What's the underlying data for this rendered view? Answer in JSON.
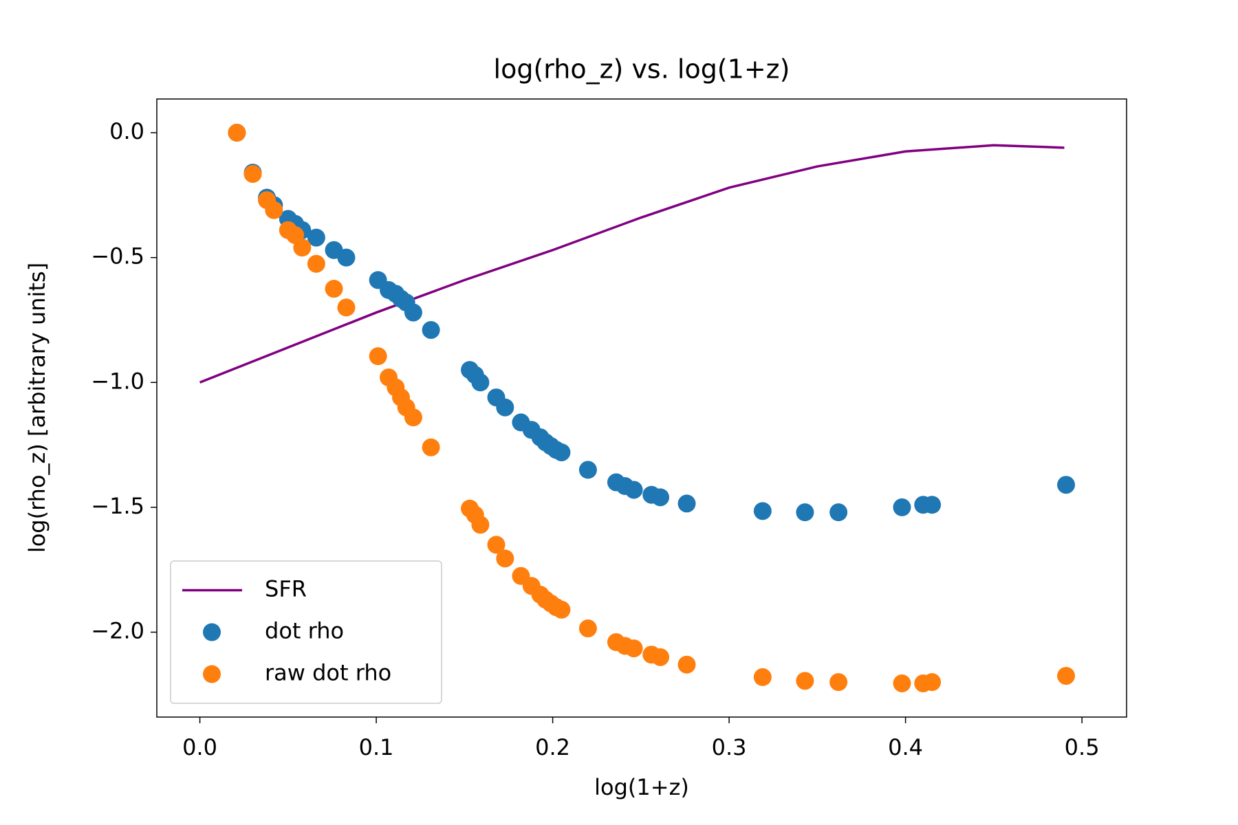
{
  "chart_data": {
    "type": "scatter",
    "title": "log(rho_z) vs. log(1+z)",
    "x_label": "log(1+z)",
    "y_label": "log(rho_z) [arbitrary units]",
    "xlim": [
      -0.0244,
      0.5253
    ],
    "ylim": [
      -2.34,
      0.135
    ],
    "xticks": [
      {
        "value": 0,
        "label": "0.0"
      },
      0.1,
      0.2,
      0.3,
      0.4,
      0.5
    ],
    "yticks": [
      {
        "value": 0,
        "label": "0.0"
      },
      {
        "value": -0.5,
        "label": "−0.5"
      },
      {
        "value": -1.0,
        "label": "−1.0"
      },
      {
        "value": -1.5,
        "label": "−1.5"
      },
      {
        "value": -2.0,
        "label": "−2.0"
      }
    ],
    "grid": false,
    "legend": "lower left",
    "series": [
      {
        "name": "SFR",
        "type": "line",
        "color": "#800080",
        "x": [
          0,
          0.05,
          0.1,
          0.15,
          0.2,
          0.25,
          0.3,
          0.35,
          0.4,
          0.45,
          0.49
        ],
        "values": [
          -1.0,
          -0.86,
          -0.72,
          -0.59,
          -0.47,
          -0.34,
          -0.22,
          -0.135,
          -0.075,
          -0.05,
          -0.06
        ]
      },
      {
        "name": "dot rho",
        "type": "scatter",
        "color": "#1f77b4",
        "x": [
          0.021,
          0.03,
          0.038,
          0.042,
          0.05,
          0.054,
          0.058,
          0.066,
          0.076,
          0.083,
          0.101,
          0.107,
          0.111,
          0.114,
          0.117,
          0.121,
          0.131,
          0.153,
          0.156,
          0.159,
          0.168,
          0.173,
          0.182,
          0.188,
          0.193,
          0.196,
          0.199,
          0.202,
          0.205,
          0.22,
          0.236,
          0.241,
          0.246,
          0.256,
          0.261,
          0.276,
          0.319,
          0.343,
          0.362,
          0.398,
          0.41,
          0.415,
          0.491
        ],
        "values": [
          0.0,
          -0.16,
          -0.26,
          -0.29,
          -0.345,
          -0.365,
          -0.39,
          -0.42,
          -0.47,
          -0.5,
          -0.59,
          -0.63,
          -0.645,
          -0.665,
          -0.68,
          -0.72,
          -0.79,
          -0.95,
          -0.97,
          -1.0,
          -1.06,
          -1.1,
          -1.16,
          -1.19,
          -1.22,
          -1.24,
          -1.255,
          -1.27,
          -1.28,
          -1.35,
          -1.4,
          -1.415,
          -1.43,
          -1.45,
          -1.46,
          -1.485,
          -1.515,
          -1.52,
          -1.52,
          -1.5,
          -1.49,
          -1.49,
          -1.41
        ]
      },
      {
        "name": "raw dot rho",
        "type": "scatter",
        "color": "#ff7f0e",
        "x": [
          0.021,
          0.03,
          0.038,
          0.042,
          0.05,
          0.054,
          0.058,
          0.066,
          0.076,
          0.083,
          0.101,
          0.107,
          0.111,
          0.114,
          0.117,
          0.121,
          0.131,
          0.153,
          0.156,
          0.159,
          0.168,
          0.173,
          0.182,
          0.188,
          0.193,
          0.196,
          0.199,
          0.202,
          0.205,
          0.22,
          0.236,
          0.241,
          0.246,
          0.256,
          0.261,
          0.276,
          0.319,
          0.343,
          0.362,
          0.398,
          0.41,
          0.415,
          0.491
        ],
        "values": [
          0.0,
          -0.165,
          -0.27,
          -0.31,
          -0.39,
          -0.41,
          -0.46,
          -0.525,
          -0.625,
          -0.7,
          -0.895,
          -0.98,
          -1.02,
          -1.06,
          -1.1,
          -1.14,
          -1.26,
          -1.505,
          -1.53,
          -1.57,
          -1.65,
          -1.705,
          -1.775,
          -1.815,
          -1.85,
          -1.87,
          -1.885,
          -1.9,
          -1.91,
          -1.985,
          -2.04,
          -2.055,
          -2.065,
          -2.09,
          -2.1,
          -2.13,
          -2.18,
          -2.195,
          -2.2,
          -2.205,
          -2.205,
          -2.2,
          -2.175
        ]
      }
    ]
  }
}
